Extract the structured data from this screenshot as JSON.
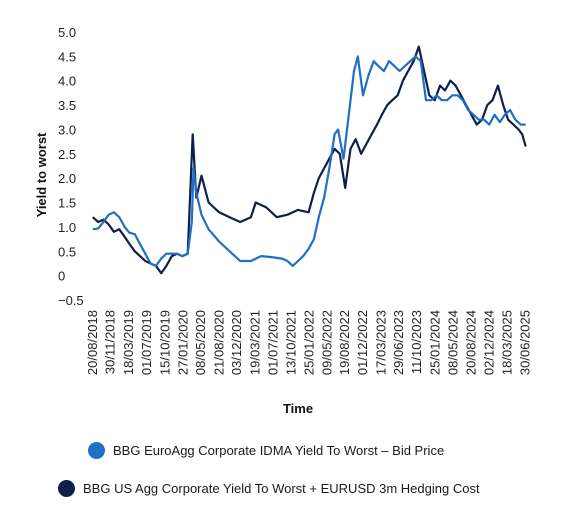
{
  "chart_data": {
    "type": "line",
    "title": "",
    "xlabel": "Time",
    "ylabel": "Yield to worst",
    "ylim": [
      -0.5,
      5.0
    ],
    "yticks": [
      "5.0",
      "4.5",
      "4.0",
      "3.5",
      "3.0",
      "2.5",
      "2.0",
      "1.5",
      "1.0",
      "0.5",
      "0",
      "−0.5"
    ],
    "ytick_values": [
      5.0,
      4.5,
      4.0,
      3.5,
      3.0,
      2.5,
      2.0,
      1.5,
      1.0,
      0.5,
      0,
      -0.5
    ],
    "xlim": [
      "2018-07-23",
      "2025-07-25"
    ],
    "grid": false,
    "legend_position": "bottom",
    "xticks": [
      "20/08/2018",
      "30/11/2018",
      "18/03/2019",
      "01/07/2019",
      "15/10/2019",
      "27/01/2020",
      "08/05/2020",
      "21/08/2020",
      "03/12/2020",
      "19/03/2021",
      "01/07/2021",
      "13/10/2021",
      "25/01/2022",
      "09/05/2022",
      "19/08/2022",
      "01/12/2022",
      "17/03/2023",
      "29/06/2023",
      "11/10/2023",
      "25/01/2024",
      "08/05/2024",
      "20/08/2024",
      "02/12/2024",
      "18/03/2025",
      "30/06/2025"
    ],
    "series": [
      {
        "name": "BBG EuroAgg Corporate IDMA Yield To Worst – Bid Price",
        "color": "#1f6fc5",
        "points": [
          [
            "2018-08-20",
            0.95
          ],
          [
            "2018-09-20",
            0.97
          ],
          [
            "2018-10-20",
            1.1
          ],
          [
            "2018-11-20",
            1.25
          ],
          [
            "2018-12-20",
            1.3
          ],
          [
            "2019-01-20",
            1.2
          ],
          [
            "2019-02-20",
            1.0
          ],
          [
            "2019-03-20",
            0.88
          ],
          [
            "2019-04-20",
            0.85
          ],
          [
            "2019-05-20",
            0.65
          ],
          [
            "2019-06-20",
            0.45
          ],
          [
            "2019-07-20",
            0.25
          ],
          [
            "2019-08-20",
            0.2
          ],
          [
            "2019-09-20",
            0.35
          ],
          [
            "2019-10-20",
            0.45
          ],
          [
            "2019-11-20",
            0.45
          ],
          [
            "2019-12-20",
            0.45
          ],
          [
            "2020-01-20",
            0.4
          ],
          [
            "2020-02-20",
            0.45
          ],
          [
            "2020-03-15",
            1.1
          ],
          [
            "2020-03-25",
            2.2
          ],
          [
            "2020-04-10",
            1.7
          ],
          [
            "2020-05-10",
            1.25
          ],
          [
            "2020-06-20",
            0.95
          ],
          [
            "2020-08-20",
            0.7
          ],
          [
            "2020-10-20",
            0.5
          ],
          [
            "2020-12-20",
            0.3
          ],
          [
            "2021-02-20",
            0.3
          ],
          [
            "2021-04-20",
            0.4
          ],
          [
            "2021-06-20",
            0.38
          ],
          [
            "2021-08-20",
            0.35
          ],
          [
            "2021-09-20",
            0.3
          ],
          [
            "2021-10-20",
            0.2
          ],
          [
            "2021-11-20",
            0.3
          ],
          [
            "2021-12-20",
            0.4
          ],
          [
            "2022-01-20",
            0.55
          ],
          [
            "2022-02-20",
            0.75
          ],
          [
            "2022-03-20",
            1.2
          ],
          [
            "2022-04-20",
            1.6
          ],
          [
            "2022-05-20",
            2.2
          ],
          [
            "2022-06-20",
            2.9
          ],
          [
            "2022-07-10",
            3.0
          ],
          [
            "2022-08-10",
            2.4
          ],
          [
            "2022-09-10",
            3.3
          ],
          [
            "2022-10-10",
            4.2
          ],
          [
            "2022-11-01",
            4.5
          ],
          [
            "2022-12-01",
            3.7
          ],
          [
            "2023-01-01",
            4.1
          ],
          [
            "2023-02-01",
            4.4
          ],
          [
            "2023-03-01",
            4.3
          ],
          [
            "2023-04-01",
            4.2
          ],
          [
            "2023-05-01",
            4.4
          ],
          [
            "2023-06-01",
            4.3
          ],
          [
            "2023-07-01",
            4.2
          ],
          [
            "2023-08-01",
            4.3
          ],
          [
            "2023-09-01",
            4.4
          ],
          [
            "2023-10-01",
            4.5
          ],
          [
            "2023-11-01",
            4.4
          ],
          [
            "2023-12-01",
            3.6
          ],
          [
            "2024-01-01",
            3.6
          ],
          [
            "2024-02-01",
            3.7
          ],
          [
            "2024-03-01",
            3.6
          ],
          [
            "2024-04-01",
            3.6
          ],
          [
            "2024-05-01",
            3.7
          ],
          [
            "2024-06-01",
            3.7
          ],
          [
            "2024-07-01",
            3.6
          ],
          [
            "2024-08-01",
            3.4
          ],
          [
            "2024-09-01",
            3.3
          ],
          [
            "2024-10-01",
            3.2
          ],
          [
            "2024-11-01",
            3.2
          ],
          [
            "2024-12-01",
            3.1
          ],
          [
            "2025-01-01",
            3.3
          ],
          [
            "2025-02-01",
            3.15
          ],
          [
            "2025-03-01",
            3.3
          ],
          [
            "2025-04-01",
            3.4
          ],
          [
            "2025-05-01",
            3.2
          ],
          [
            "2025-06-01",
            3.1
          ],
          [
            "2025-06-30",
            3.1
          ]
        ]
      },
      {
        "name": "BBG US Agg Corporate Yield To Worst + EURUSD 3m Hedging Cost",
        "color": "#0e1f4d",
        "points": [
          [
            "2018-08-20",
            1.2
          ],
          [
            "2018-09-20",
            1.1
          ],
          [
            "2018-10-20",
            1.15
          ],
          [
            "2018-11-20",
            1.05
          ],
          [
            "2018-12-20",
            0.9
          ],
          [
            "2019-01-20",
            0.95
          ],
          [
            "2019-02-20",
            0.8
          ],
          [
            "2019-03-20",
            0.65
          ],
          [
            "2019-04-20",
            0.5
          ],
          [
            "2019-05-20",
            0.4
          ],
          [
            "2019-06-20",
            0.3
          ],
          [
            "2019-07-20",
            0.25
          ],
          [
            "2019-08-20",
            0.2
          ],
          [
            "2019-09-20",
            0.05
          ],
          [
            "2019-10-20",
            0.2
          ],
          [
            "2019-11-20",
            0.4
          ],
          [
            "2019-12-20",
            0.45
          ],
          [
            "2020-01-20",
            0.4
          ],
          [
            "2020-02-20",
            0.45
          ],
          [
            "2020-03-20",
            2.9
          ],
          [
            "2020-04-10",
            1.6
          ],
          [
            "2020-05-10",
            2.05
          ],
          [
            "2020-06-20",
            1.5
          ],
          [
            "2020-08-20",
            1.3
          ],
          [
            "2020-10-20",
            1.2
          ],
          [
            "2020-12-20",
            1.1
          ],
          [
            "2021-02-20",
            1.2
          ],
          [
            "2021-03-20",
            1.5
          ],
          [
            "2021-05-20",
            1.4
          ],
          [
            "2021-07-20",
            1.2
          ],
          [
            "2021-09-20",
            1.25
          ],
          [
            "2021-11-20",
            1.35
          ],
          [
            "2022-01-20",
            1.3
          ],
          [
            "2022-02-20",
            1.7
          ],
          [
            "2022-03-20",
            2.0
          ],
          [
            "2022-04-20",
            2.2
          ],
          [
            "2022-05-20",
            2.4
          ],
          [
            "2022-06-20",
            2.6
          ],
          [
            "2022-07-20",
            2.5
          ],
          [
            "2022-08-20",
            1.8
          ],
          [
            "2022-09-20",
            2.6
          ],
          [
            "2022-10-20",
            2.8
          ],
          [
            "2022-11-20",
            2.5
          ],
          [
            "2022-12-20",
            2.7
          ],
          [
            "2023-01-20",
            2.9
          ],
          [
            "2023-02-20",
            3.1
          ],
          [
            "2023-03-20",
            3.3
          ],
          [
            "2023-04-20",
            3.5
          ],
          [
            "2023-05-20",
            3.6
          ],
          [
            "2023-06-20",
            3.7
          ],
          [
            "2023-07-20",
            4.0
          ],
          [
            "2023-08-20",
            4.2
          ],
          [
            "2023-09-20",
            4.4
          ],
          [
            "2023-10-20",
            4.7
          ],
          [
            "2023-11-20",
            4.2
          ],
          [
            "2023-12-20",
            3.7
          ],
          [
            "2024-01-20",
            3.6
          ],
          [
            "2024-02-20",
            3.9
          ],
          [
            "2024-03-20",
            3.8
          ],
          [
            "2024-04-20",
            4.0
          ],
          [
            "2024-05-20",
            3.9
          ],
          [
            "2024-06-20",
            3.7
          ],
          [
            "2024-07-20",
            3.5
          ],
          [
            "2024-08-20",
            3.3
          ],
          [
            "2024-09-20",
            3.1
          ],
          [
            "2024-10-20",
            3.2
          ],
          [
            "2024-11-20",
            3.5
          ],
          [
            "2024-12-20",
            3.6
          ],
          [
            "2025-01-20",
            3.9
          ],
          [
            "2025-02-20",
            3.5
          ],
          [
            "2025-03-20",
            3.2
          ],
          [
            "2025-04-20",
            3.1
          ],
          [
            "2025-05-20",
            3.0
          ],
          [
            "2025-06-10",
            2.9
          ],
          [
            "2025-06-30",
            2.65
          ]
        ]
      }
    ]
  },
  "legend": {
    "items": [
      {
        "label": "BBG EuroAgg Corporate IDMA Yield To Worst – Bid Price",
        "color": "#1f6fc5"
      },
      {
        "label": "BBG US Agg Corporate Yield To Worst + EURUSD 3m Hedging Cost",
        "color": "#0e1f4d"
      }
    ]
  }
}
